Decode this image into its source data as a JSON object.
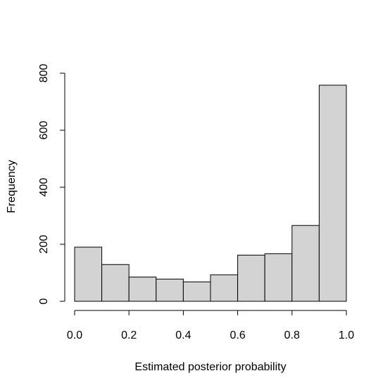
{
  "chart_data": {
    "type": "bar",
    "title": "",
    "xlabel": "Estimated posterior probability",
    "ylabel": "Frequency",
    "bins": [
      [
        0.0,
        0.1
      ],
      [
        0.1,
        0.2
      ],
      [
        0.2,
        0.3
      ],
      [
        0.3,
        0.4
      ],
      [
        0.4,
        0.5
      ],
      [
        0.5,
        0.6
      ],
      [
        0.6,
        0.7
      ],
      [
        0.7,
        0.8
      ],
      [
        0.8,
        0.9
      ],
      [
        0.9,
        1.0
      ]
    ],
    "values": [
      190,
      129,
      85,
      78,
      68,
      93,
      162,
      167,
      266,
      758
    ],
    "xlim": [
      0.0,
      1.0
    ],
    "ylim": [
      0,
      800
    ],
    "x_ticks": [
      0.0,
      0.2,
      0.4,
      0.6,
      0.8,
      1.0
    ],
    "x_tick_labels": [
      "0.0",
      "0.2",
      "0.4",
      "0.6",
      "0.8",
      "1.0"
    ],
    "y_ticks": [
      0,
      200,
      400,
      600,
      800
    ],
    "y_tick_labels": [
      "0",
      "200",
      "400",
      "600",
      "800"
    ],
    "grid": false,
    "colors": {
      "bar_fill": "#d3d3d3",
      "bar_stroke": "#000000"
    }
  }
}
